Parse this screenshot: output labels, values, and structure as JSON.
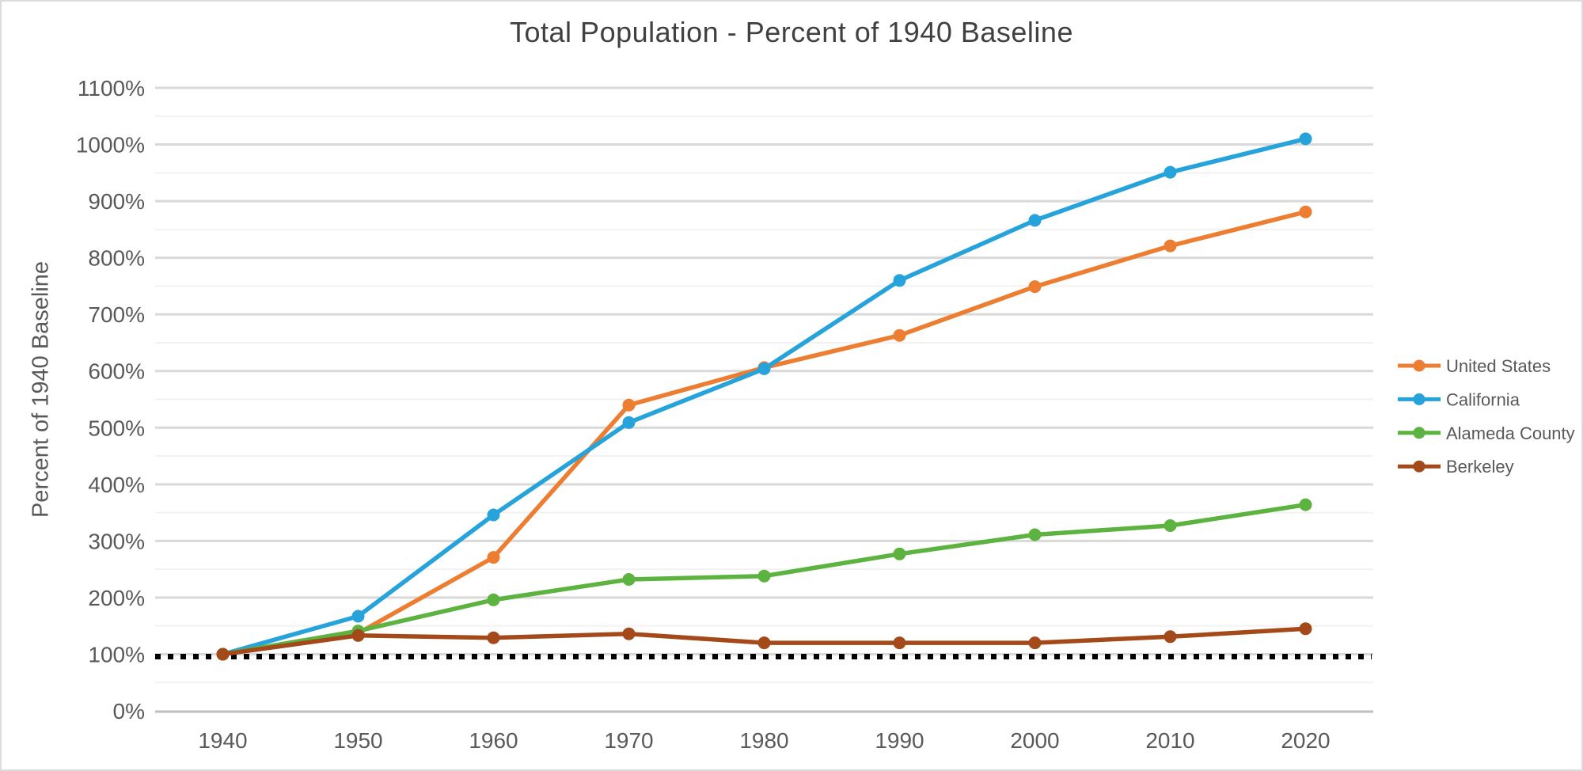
{
  "window": {
    "background": "#ffffff",
    "border_color": "#dcdcdc"
  },
  "chart_data": {
    "type": "line",
    "title": "Total Population - Percent of 1940 Baseline",
    "ylabel": "Percent of 1940 Baseline",
    "xlabel": "",
    "categories": [
      "1940",
      "1950",
      "1960",
      "1970",
      "1980",
      "1990",
      "2000",
      "2010",
      "2020"
    ],
    "ylim": [
      0,
      1100
    ],
    "y_tick_step": 100,
    "y_minor_step": 50,
    "y_tick_labels": [
      "0%",
      "100%",
      "200%",
      "300%",
      "400%",
      "500%",
      "600%",
      "700%",
      "800%",
      "900%",
      "1000%",
      "1100%"
    ],
    "grid": {
      "major_color": "#d9d9d9",
      "minor_color": "#f2f2f2",
      "axis_color": "#bfbfbf",
      "major_on": true,
      "minor_on": true
    },
    "baseline": {
      "value": 100,
      "style": "dotted",
      "color": "#000000"
    },
    "legend_position": "right",
    "text_color": "#595959",
    "title_color": "#404040",
    "marker": "circle",
    "series": [
      {
        "name": "United States",
        "color": "#ED7D31",
        "values": [
          100,
          137,
          271,
          540,
          606,
          663,
          749,
          821,
          881
        ]
      },
      {
        "name": "California",
        "color": "#27A3DC",
        "values": [
          100,
          167,
          346,
          509,
          604,
          760,
          866,
          951,
          1010
        ]
      },
      {
        "name": "Alameda County",
        "color": "#5CB33F",
        "values": [
          100,
          141,
          196,
          232,
          238,
          277,
          311,
          327,
          364
        ]
      },
      {
        "name": "Berkeley",
        "color": "#A3491A",
        "values": [
          100,
          133,
          129,
          136,
          120,
          120,
          120,
          131,
          145
        ]
      }
    ]
  }
}
